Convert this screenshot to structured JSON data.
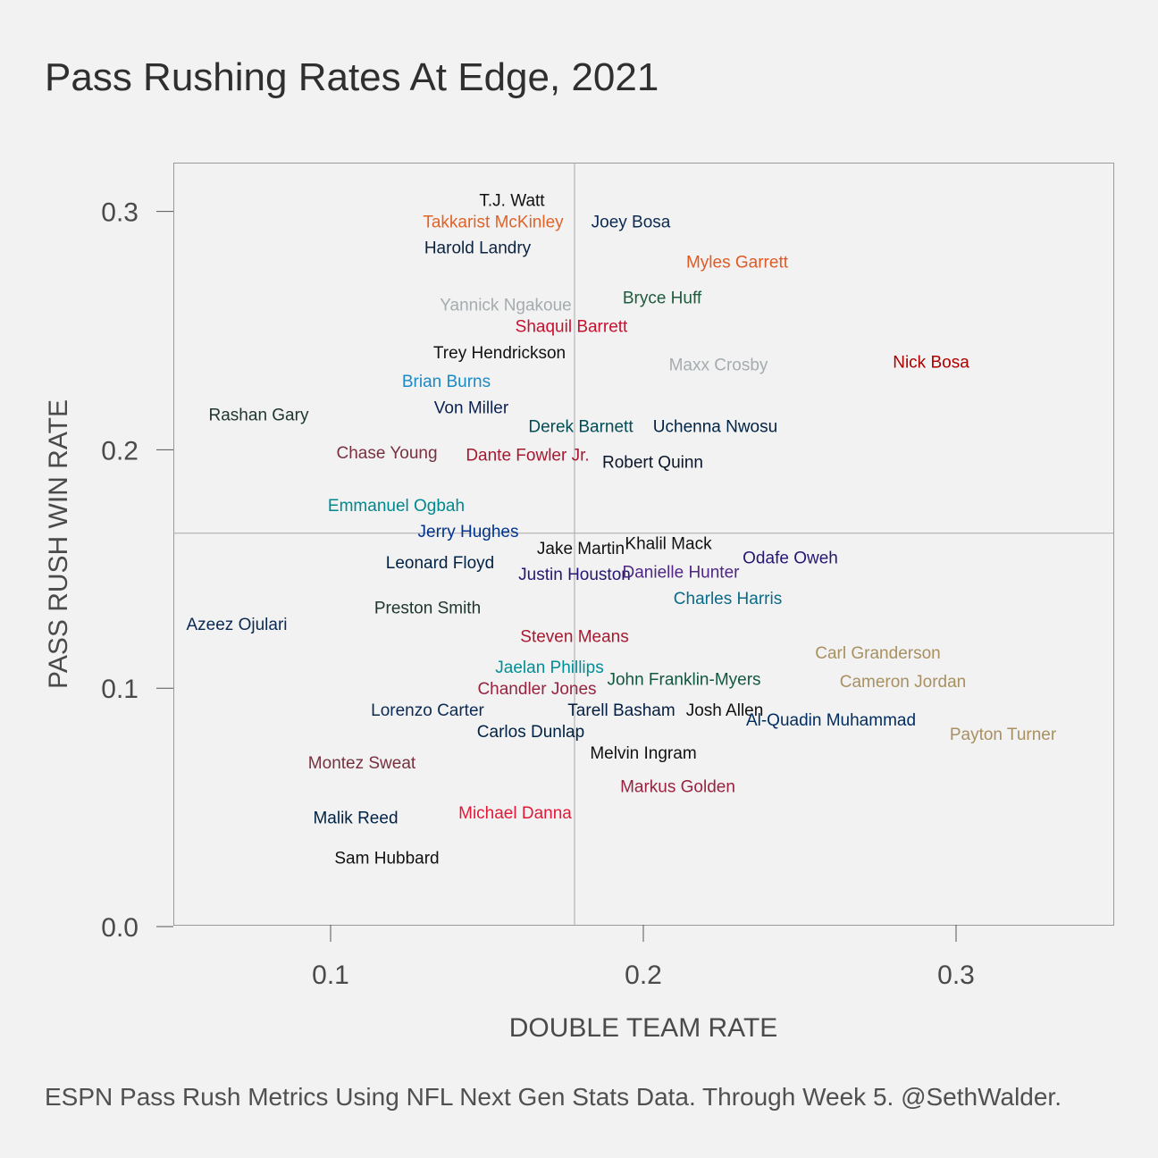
{
  "chart_data": {
    "type": "scatter",
    "title": "Pass Rushing Rates At Edge, 2021",
    "caption": "ESPN Pass Rush Metrics Using NFL Next Gen Stats Data. Through Week 5. @SethWalder.",
    "xlabel": "DOUBLE TEAM RATE",
    "ylabel": "PASS RUSH WIN RATE",
    "xlim": [
      0.05,
      0.35
    ],
    "ylim": [
      0.0,
      0.32
    ],
    "x_ticks": [
      0.1,
      0.2,
      0.3
    ],
    "x_tick_labels": [
      "0.1",
      "0.2",
      "0.3"
    ],
    "y_ticks": [
      0.0,
      0.1,
      0.2,
      0.3
    ],
    "y_tick_labels": [
      "0.0",
      "0.1",
      "0.2",
      "0.3"
    ],
    "reference_lines": {
      "x": 0.178,
      "y": 0.165
    },
    "marker": "label-only",
    "points": [
      {
        "label": "T.J. Watt",
        "x": 0.158,
        "y": 0.305,
        "color": "#111111"
      },
      {
        "label": "Takkarist McKinley",
        "x": 0.152,
        "y": 0.296,
        "color": "#e0632a"
      },
      {
        "label": "Joey Bosa",
        "x": 0.196,
        "y": 0.296,
        "color": "#0b2a52"
      },
      {
        "label": "Harold Landry",
        "x": 0.147,
        "y": 0.285,
        "color": "#0c2340"
      },
      {
        "label": "Myles Garrett",
        "x": 0.23,
        "y": 0.279,
        "color": "#e05a25"
      },
      {
        "label": "Bryce Huff",
        "x": 0.206,
        "y": 0.264,
        "color": "#1d5a3c"
      },
      {
        "label": "Yannick Ngakoue",
        "x": 0.156,
        "y": 0.261,
        "color": "#a5acaf"
      },
      {
        "label": "Shaquil Barrett",
        "x": 0.177,
        "y": 0.252,
        "color": "#c8102e"
      },
      {
        "label": "Trey Hendrickson",
        "x": 0.154,
        "y": 0.241,
        "color": "#111111"
      },
      {
        "label": "Nick Bosa",
        "x": 0.292,
        "y": 0.237,
        "color": "#aa0000"
      },
      {
        "label": "Maxx Crosby",
        "x": 0.224,
        "y": 0.236,
        "color": "#a5acaf"
      },
      {
        "label": "Brian Burns",
        "x": 0.137,
        "y": 0.229,
        "color": "#1a8ac7"
      },
      {
        "label": "Von Miller",
        "x": 0.145,
        "y": 0.218,
        "color": "#0b2150"
      },
      {
        "label": "Rashan Gary",
        "x": 0.077,
        "y": 0.215,
        "color": "#203731"
      },
      {
        "label": "Derek Barnett",
        "x": 0.18,
        "y": 0.21,
        "color": "#004c54"
      },
      {
        "label": "Uchenna Nwosu",
        "x": 0.223,
        "y": 0.21,
        "color": "#002244"
      },
      {
        "label": "Chase Young",
        "x": 0.118,
        "y": 0.199,
        "color": "#773141"
      },
      {
        "label": "Dante Fowler Jr.",
        "x": 0.163,
        "y": 0.198,
        "color": "#a71930"
      },
      {
        "label": "Robert Quinn",
        "x": 0.203,
        "y": 0.195,
        "color": "#0b162a"
      },
      {
        "label": "Emmanuel Ogbah",
        "x": 0.121,
        "y": 0.177,
        "color": "#00888f"
      },
      {
        "label": "Jerry Hughes",
        "x": 0.144,
        "y": 0.166,
        "color": "#00338d"
      },
      {
        "label": "Jake Martin",
        "x": 0.18,
        "y": 0.159,
        "color": "#111111"
      },
      {
        "label": "Khalil Mack",
        "x": 0.208,
        "y": 0.161,
        "color": "#111111"
      },
      {
        "label": "Odafe Oweh",
        "x": 0.247,
        "y": 0.155,
        "color": "#241773"
      },
      {
        "label": "Leonard Floyd",
        "x": 0.135,
        "y": 0.153,
        "color": "#002244"
      },
      {
        "label": "Justin Houston",
        "x": 0.178,
        "y": 0.148,
        "color": "#241773"
      },
      {
        "label": "Danielle Hunter",
        "x": 0.212,
        "y": 0.149,
        "color": "#4f2683"
      },
      {
        "label": "Charles Harris",
        "x": 0.227,
        "y": 0.138,
        "color": "#0a6a8a"
      },
      {
        "label": "Preston Smith",
        "x": 0.131,
        "y": 0.134,
        "color": "#203731"
      },
      {
        "label": "Azeez Ojulari",
        "x": 0.07,
        "y": 0.127,
        "color": "#0b2a52"
      },
      {
        "label": "Steven Means",
        "x": 0.178,
        "y": 0.122,
        "color": "#a71930"
      },
      {
        "label": "Carl Granderson",
        "x": 0.275,
        "y": 0.115,
        "color": "#a89060"
      },
      {
        "label": "Jaelan Phillips",
        "x": 0.17,
        "y": 0.109,
        "color": "#008e97"
      },
      {
        "label": "John Franklin-Myers",
        "x": 0.213,
        "y": 0.104,
        "color": "#125740"
      },
      {
        "label": "Cameron Jordan",
        "x": 0.283,
        "y": 0.103,
        "color": "#a89060"
      },
      {
        "label": "Chandler Jones",
        "x": 0.166,
        "y": 0.1,
        "color": "#97233f"
      },
      {
        "label": "Lorenzo Carter",
        "x": 0.131,
        "y": 0.091,
        "color": "#0b2a52"
      },
      {
        "label": "Tarell Basham",
        "x": 0.193,
        "y": 0.091,
        "color": "#041e42"
      },
      {
        "label": "Josh Allen",
        "x": 0.226,
        "y": 0.091,
        "color": "#111111"
      },
      {
        "label": "Al-Quadin Muhammad",
        "x": 0.26,
        "y": 0.087,
        "color": "#002c5f"
      },
      {
        "label": "Payton Turner",
        "x": 0.315,
        "y": 0.081,
        "color": "#a89060"
      },
      {
        "label": "Carlos Dunlap",
        "x": 0.164,
        "y": 0.082,
        "color": "#002244"
      },
      {
        "label": "Melvin Ingram",
        "x": 0.2,
        "y": 0.073,
        "color": "#111111"
      },
      {
        "label": "Montez Sweat",
        "x": 0.11,
        "y": 0.069,
        "color": "#773141"
      },
      {
        "label": "Markus Golden",
        "x": 0.211,
        "y": 0.059,
        "color": "#97233f"
      },
      {
        "label": "Michael Danna",
        "x": 0.159,
        "y": 0.048,
        "color": "#e31837"
      },
      {
        "label": "Malik Reed",
        "x": 0.108,
        "y": 0.046,
        "color": "#002244"
      },
      {
        "label": "Sam Hubbard",
        "x": 0.118,
        "y": 0.029,
        "color": "#111111"
      }
    ]
  }
}
